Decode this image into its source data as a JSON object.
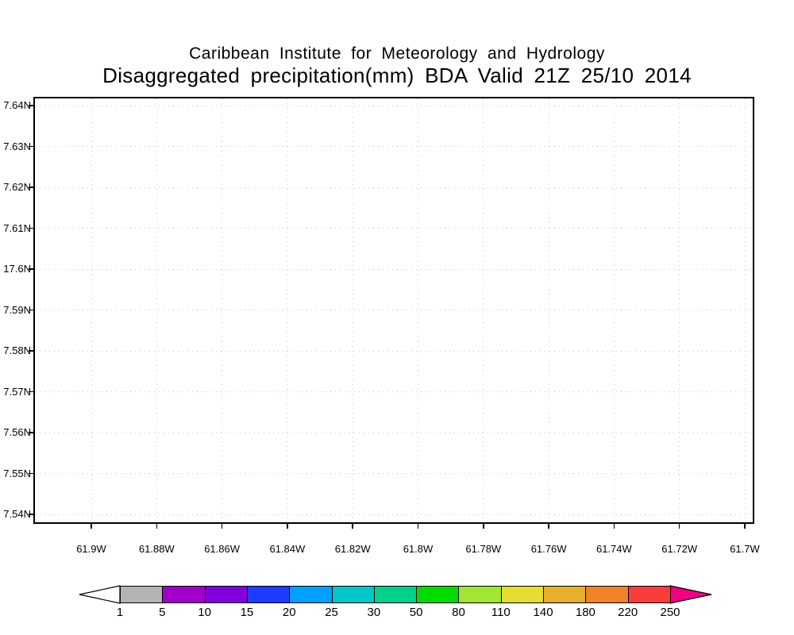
{
  "chart_data": {
    "type": "heatmap",
    "title": "Caribbean Institute for Meteorology and Hydrology",
    "subtitle": "Disaggregated precipitation(mm) BDA Valid 21Z 25/10 2014",
    "field": "Disaggregated precipitation (mm)",
    "region_code": "BDA",
    "valid_time": "21Z 25/10 2014",
    "x_ticks": [
      "61.9W",
      "61.88W",
      "61.86W",
      "61.84W",
      "61.82W",
      "61.8W",
      "61.78W",
      "61.76W",
      "61.74W",
      "61.72W",
      "61.7W"
    ],
    "y_ticks": [
      "7.64N",
      "7.63N",
      "7.62N",
      "7.61N",
      "17.6N",
      "7.59N",
      "7.58N",
      "7.57N",
      "7.56N",
      "7.55N",
      "7.54N"
    ],
    "grid": true,
    "values": [],
    "plot_note": "no shaded precipitation anywhere in the plot area (empty white field)",
    "colorbar": {
      "tick_labels": [
        "1",
        "5",
        "10",
        "15",
        "20",
        "25",
        "30",
        "50",
        "80",
        "110",
        "140",
        "180",
        "220",
        "250"
      ],
      "segment_colors": [
        "#b4b4b4",
        "#a000c8",
        "#8200dc",
        "#1e3cff",
        "#00a0ff",
        "#00c8c8",
        "#00d28c",
        "#00dc00",
        "#a0e632",
        "#e6dc32",
        "#e6af2d",
        "#f08228",
        "#fa3c3c"
      ],
      "left_arrow_color": "#ffffff",
      "right_arrow_color": "#f00082"
    }
  }
}
